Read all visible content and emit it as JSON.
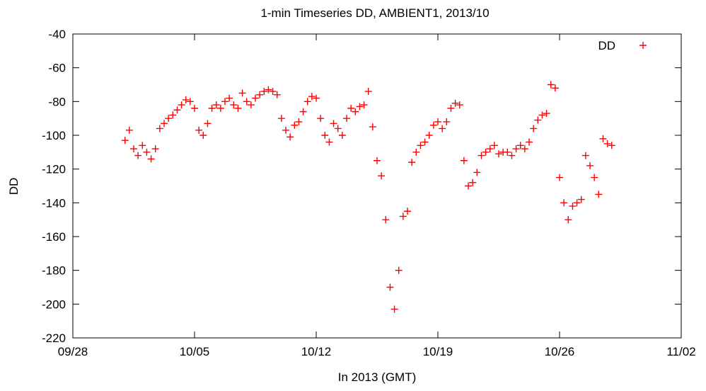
{
  "chart_data": {
    "type": "scatter",
    "title": "1-min Timeseries DD, AMBIENT1, 2013/10",
    "xlabel": "In 2013 (GMT)",
    "ylabel": "DD",
    "x_ticks": [
      "09/28",
      "10/05",
      "10/12",
      "10/19",
      "10/26",
      "11/02"
    ],
    "x_tick_values": [
      "2013-09-28",
      "2013-10-05",
      "2013-10-12",
      "2013-10-19",
      "2013-10-26",
      "2013-11-02"
    ],
    "xlim": [
      "2013-09-28",
      "2013-11-02"
    ],
    "y_ticks": [
      "-40",
      "-60",
      "-80",
      "-100",
      "-120",
      "-140",
      "-160",
      "-180",
      "-200",
      "-220"
    ],
    "ylim": [
      -220,
      -40
    ],
    "grid": false,
    "legend": {
      "placement": "top-right",
      "entries": [
        "DD"
      ]
    },
    "series": [
      {
        "name": "DD",
        "color": "#ff0000",
        "marker": "plus",
        "x": [
          "2013-10-01T00:00",
          "2013-10-01T06:00",
          "2013-10-01T12:00",
          "2013-10-01T18:00",
          "2013-10-02T00:00",
          "2013-10-02T06:00",
          "2013-10-02T12:00",
          "2013-10-02T18:00",
          "2013-10-03T00:00",
          "2013-10-03T06:00",
          "2013-10-03T12:00",
          "2013-10-03T18:00",
          "2013-10-04T00:00",
          "2013-10-04T06:00",
          "2013-10-04T12:00",
          "2013-10-04T18:00",
          "2013-10-05T00:00",
          "2013-10-05T06:00",
          "2013-10-05T12:00",
          "2013-10-05T18:00",
          "2013-10-06T00:00",
          "2013-10-06T06:00",
          "2013-10-06T12:00",
          "2013-10-06T18:00",
          "2013-10-07T00:00",
          "2013-10-07T06:00",
          "2013-10-07T12:00",
          "2013-10-07T18:00",
          "2013-10-08T00:00",
          "2013-10-08T06:00",
          "2013-10-08T12:00",
          "2013-10-08T18:00",
          "2013-10-09T00:00",
          "2013-10-09T06:00",
          "2013-10-09T12:00",
          "2013-10-09T18:00",
          "2013-10-10T00:00",
          "2013-10-10T06:00",
          "2013-10-10T12:00",
          "2013-10-10T18:00",
          "2013-10-11T00:00",
          "2013-10-11T06:00",
          "2013-10-11T12:00",
          "2013-10-11T18:00",
          "2013-10-12T00:00",
          "2013-10-12T06:00",
          "2013-10-12T12:00",
          "2013-10-12T18:00",
          "2013-10-13T00:00",
          "2013-10-13T06:00",
          "2013-10-13T12:00",
          "2013-10-13T18:00",
          "2013-10-14T00:00",
          "2013-10-14T06:00",
          "2013-10-14T12:00",
          "2013-10-14T18:00",
          "2013-10-15T00:00",
          "2013-10-15T06:00",
          "2013-10-15T12:00",
          "2013-10-15T18:00",
          "2013-10-16T00:00",
          "2013-10-16T06:00",
          "2013-10-16T12:00",
          "2013-10-16T18:00",
          "2013-10-17T00:00",
          "2013-10-17T06:00",
          "2013-10-17T12:00",
          "2013-10-17T18:00",
          "2013-10-18T00:00",
          "2013-10-18T06:00",
          "2013-10-18T12:00",
          "2013-10-18T18:00",
          "2013-10-19T00:00",
          "2013-10-19T06:00",
          "2013-10-19T12:00",
          "2013-10-19T18:00",
          "2013-10-20T00:00",
          "2013-10-20T06:00",
          "2013-10-20T12:00",
          "2013-10-20T18:00",
          "2013-10-21T00:00",
          "2013-10-21T06:00",
          "2013-10-21T12:00",
          "2013-10-21T18:00",
          "2013-10-22T00:00",
          "2013-10-22T06:00",
          "2013-10-22T12:00",
          "2013-10-22T18:00",
          "2013-10-23T00:00",
          "2013-10-23T06:00",
          "2013-10-23T12:00",
          "2013-10-23T18:00",
          "2013-10-24T00:00",
          "2013-10-24T06:00",
          "2013-10-24T12:00",
          "2013-10-24T18:00",
          "2013-10-25T00:00",
          "2013-10-25T06:00",
          "2013-10-25T12:00",
          "2013-10-25T18:00",
          "2013-10-26T00:00",
          "2013-10-26T06:00",
          "2013-10-26T12:00",
          "2013-10-26T18:00",
          "2013-10-27T00:00",
          "2013-10-27T06:00",
          "2013-10-27T12:00",
          "2013-10-27T18:00",
          "2013-10-28T00:00",
          "2013-10-28T06:00",
          "2013-10-28T12:00",
          "2013-10-28T18:00",
          "2013-10-29T00:00"
        ],
        "y": [
          -103,
          -97,
          -108,
          -112,
          -106,
          -110,
          -114,
          -108,
          -96,
          -93,
          -90,
          -88,
          -85,
          -82,
          -79,
          -80,
          -84,
          -97,
          -100,
          -93,
          -84,
          -82,
          -84,
          -80,
          -78,
          -82,
          -84,
          -75,
          -80,
          -82,
          -78,
          -76,
          -74,
          -73,
          -74,
          -76,
          -90,
          -97,
          -101,
          -94,
          -92,
          -86,
          -80,
          -77,
          -78,
          -90,
          -100,
          -104,
          -93,
          -96,
          -100,
          -90,
          -84,
          -86,
          -83,
          -82,
          -74,
          -95,
          -115,
          -124,
          -150,
          -190,
          -203,
          -180,
          -148,
          -145,
          -116,
          -110,
          -106,
          -104,
          -100,
          -94,
          -92,
          -96,
          -92,
          -84,
          -81,
          -82,
          -115,
          -130,
          -128,
          -122,
          -112,
          -110,
          -108,
          -106,
          -111,
          -110,
          -110,
          -112,
          -108,
          -106,
          -108,
          -104,
          -96,
          -91,
          -88,
          -87,
          -70,
          -72,
          -125,
          -140,
          -150,
          -142,
          -140,
          -138,
          -112,
          -118,
          -125,
          -135,
          -102,
          -105,
          -106
        ]
      }
    ]
  }
}
